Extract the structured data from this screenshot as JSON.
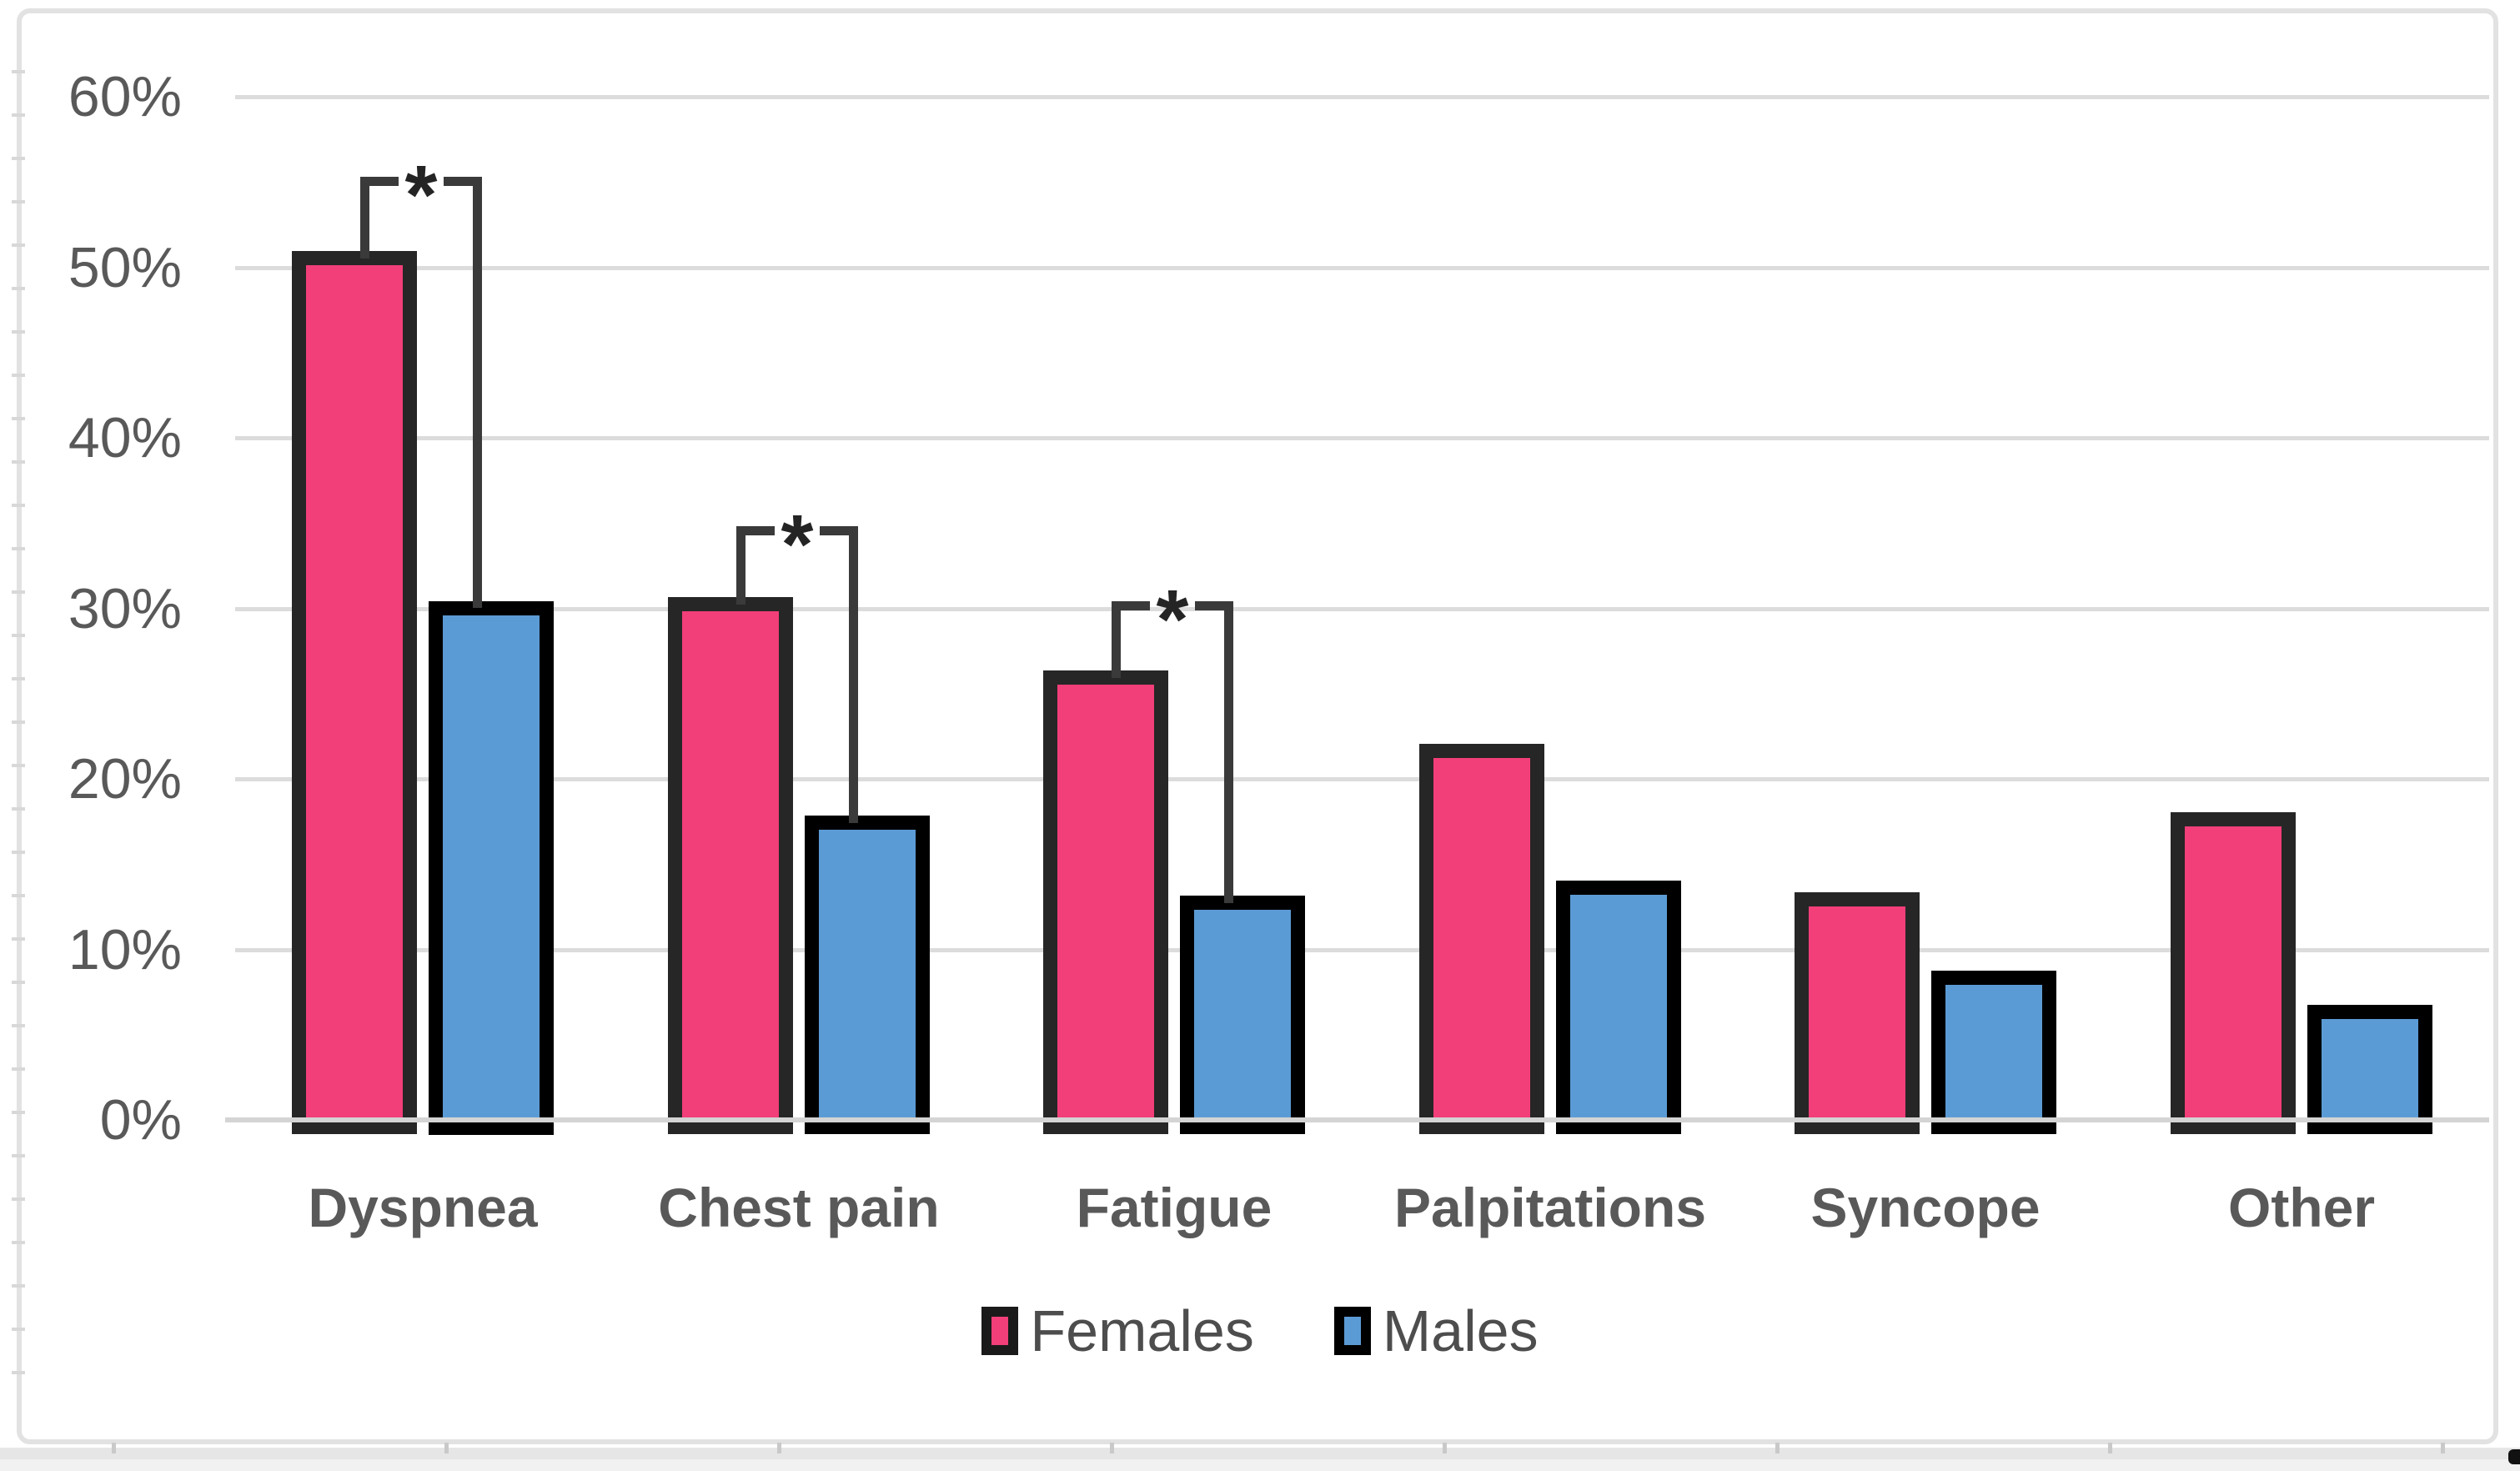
{
  "chart_data": {
    "type": "bar",
    "title": "",
    "categories": [
      "Dyspnea",
      "Chest pain",
      "Fatigue",
      "Palpitations",
      "Syncope",
      "Other"
    ],
    "series": [
      {
        "name": "Females",
        "color": "#f23e79",
        "border_color": "#262626",
        "values": [
          50.5,
          30.2,
          25.9,
          21.6,
          12.9,
          17.6
        ]
      },
      {
        "name": "Males",
        "color": "#5b9bd5",
        "border_color": "#000000",
        "values": [
          30.0,
          17.4,
          12.7,
          13.6,
          8.3,
          6.3
        ]
      }
    ],
    "xlabel": "",
    "ylabel": "",
    "y_axis": {
      "min": 0,
      "max": 60,
      "step": 10,
      "tick_labels": [
        "0%",
        "10%",
        "20%",
        "30%",
        "40%",
        "50%",
        "60%"
      ]
    },
    "grid": true,
    "significance_brackets": [
      {
        "category": "Dyspnea",
        "label": "*",
        "level_pct": 55.3
      },
      {
        "category": "Chest pain",
        "label": "*",
        "level_pct": 34.8
      },
      {
        "category": "Fatigue",
        "label": "*",
        "level_pct": 30.4
      }
    ],
    "legend": {
      "position": "bottom",
      "items": [
        "Females",
        "Males"
      ]
    }
  },
  "colors": {
    "gridline": "#dcdcdc",
    "axis_line": "#d4d4d4",
    "tick_text": "#595959",
    "category_text": "#595959",
    "legend_text": "#4d4d4d",
    "bracket": "#3a3a3a",
    "frame_border": "#e2e2e2"
  }
}
